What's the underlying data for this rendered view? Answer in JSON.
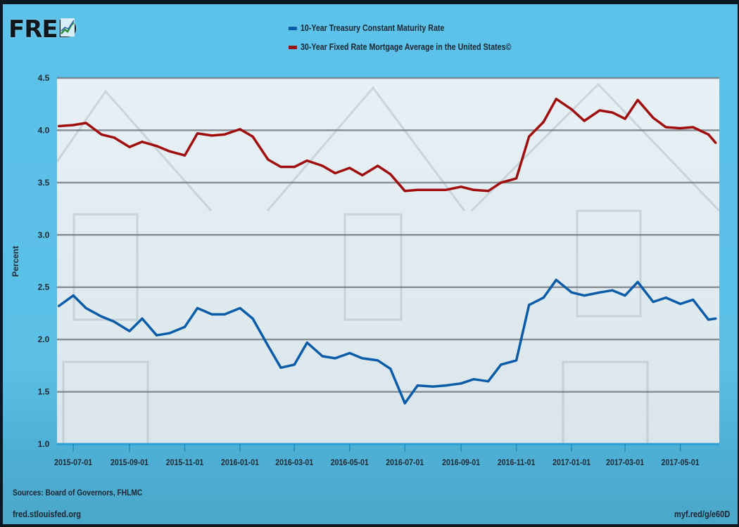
{
  "logo": {
    "text": "FRED"
  },
  "chart_data": {
    "type": "line",
    "title": "",
    "xlabel": "",
    "ylabel": "Percent",
    "ylim": [
      1.0,
      4.5
    ],
    "xlim": [
      "2015-06-13",
      "2017-06-13"
    ],
    "yticks": [
      "1.0",
      "1.5",
      "2.0",
      "2.5",
      "3.0",
      "3.5",
      "4.0",
      "4.5"
    ],
    "xticks": [
      "2015-07-01",
      "2015-09-01",
      "2015-11-01",
      "2016-01-01",
      "2016-03-01",
      "2016-05-01",
      "2016-07-01",
      "2016-09-01",
      "2016-11-01",
      "2017-01-01",
      "2017-03-01",
      "2017-05-01"
    ],
    "grid": true,
    "legend_position": "top",
    "x": [
      "2015-06-15",
      "2015-07-01",
      "2015-07-15",
      "2015-08-01",
      "2015-08-15",
      "2015-09-01",
      "2015-09-15",
      "2015-10-01",
      "2015-10-15",
      "2015-11-01",
      "2015-11-15",
      "2015-12-01",
      "2015-12-15",
      "2016-01-01",
      "2016-01-15",
      "2016-02-01",
      "2016-02-15",
      "2016-03-01",
      "2016-03-15",
      "2016-04-01",
      "2016-04-15",
      "2016-05-01",
      "2016-05-15",
      "2016-06-01",
      "2016-06-15",
      "2016-07-01",
      "2016-07-15",
      "2016-08-01",
      "2016-08-15",
      "2016-09-01",
      "2016-09-15",
      "2016-10-01",
      "2016-10-15",
      "2016-11-01",
      "2016-11-15",
      "2016-12-01",
      "2016-12-15",
      "2017-01-01",
      "2017-01-15",
      "2017-02-01",
      "2017-02-15",
      "2017-03-01",
      "2017-03-15",
      "2017-04-01",
      "2017-04-15",
      "2017-05-01",
      "2017-05-15",
      "2017-06-01",
      "2017-06-09"
    ],
    "series": [
      {
        "name": "10-Year Treasury Constant Maturity Rate",
        "color": "#0b5ca8",
        "values": [
          2.32,
          2.42,
          2.3,
          2.22,
          2.17,
          2.08,
          2.2,
          2.04,
          2.06,
          2.12,
          2.3,
          2.24,
          2.24,
          2.3,
          2.2,
          1.94,
          1.73,
          1.76,
          1.97,
          1.84,
          1.82,
          1.87,
          1.82,
          1.8,
          1.72,
          1.39,
          1.56,
          1.55,
          1.56,
          1.58,
          1.62,
          1.6,
          1.76,
          1.8,
          2.33,
          2.4,
          2.57,
          2.45,
          2.42,
          2.45,
          2.47,
          2.42,
          2.55,
          2.36,
          2.4,
          2.34,
          2.38,
          2.19,
          2.2
        ]
      },
      {
        "name": "30-Year Fixed Rate Mortgage Average in the United States©",
        "color": "#a00d0d",
        "values": [
          4.04,
          4.05,
          4.07,
          3.96,
          3.93,
          3.84,
          3.89,
          3.85,
          3.8,
          3.76,
          3.97,
          3.95,
          3.96,
          4.01,
          3.94,
          3.72,
          3.65,
          3.65,
          3.71,
          3.66,
          3.59,
          3.64,
          3.57,
          3.66,
          3.58,
          3.42,
          3.43,
          3.43,
          3.43,
          3.46,
          3.43,
          3.42,
          3.5,
          3.54,
          3.94,
          4.08,
          4.3,
          4.2,
          4.09,
          4.19,
          4.17,
          4.11,
          4.29,
          4.12,
          4.03,
          4.02,
          4.03,
          3.96,
          3.88
        ]
      }
    ]
  },
  "footer": {
    "sources": "Sources: Board of Governors, FHLMC",
    "site": "fred.stlouisfed.org",
    "shortlink": "myf.red/g/e60D"
  }
}
